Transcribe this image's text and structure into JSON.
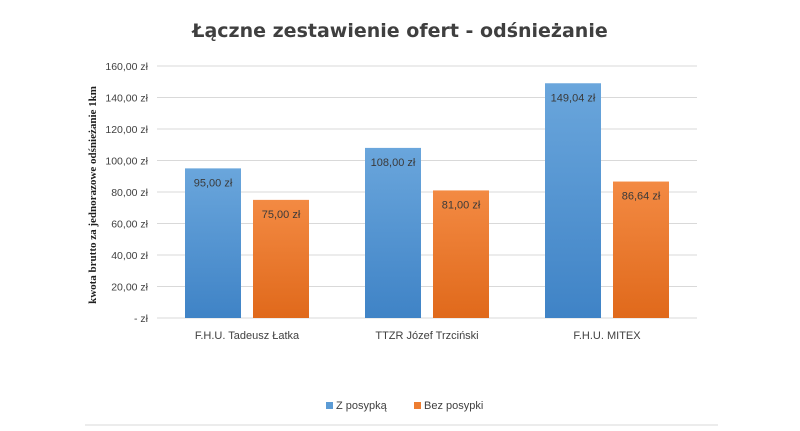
{
  "chart_data": {
    "type": "bar",
    "title": "Łączne zestawienie ofert - odśnieżanie",
    "ylabel": "kwota brutto za jednorazowe odśnieżanie 1km",
    "xlabel": "",
    "ylim": [
      0,
      160
    ],
    "yticks": [
      0,
      20,
      40,
      60,
      80,
      100,
      120,
      140,
      160
    ],
    "ytick_labels": [
      "-   zł",
      "20,00 zł",
      "40,00 zł",
      "60,00 zł",
      "80,00 zł",
      "100,00 zł",
      "120,00 zł",
      "140,00 zł",
      "160,00 zł"
    ],
    "categories": [
      "F.H.U. Tadeusz Łatka",
      "TTZR Józef Trzciński",
      "F.H.U. MITEX"
    ],
    "series": [
      {
        "name": "Z posypką",
        "color": "#5b9bd5",
        "values": [
          95.0,
          108.0,
          149.04
        ],
        "labels": [
          "95,00 zł",
          "108,00 zł",
          "149,04 zł"
        ]
      },
      {
        "name": "Bez posypki",
        "color": "#ed7d31",
        "values": [
          75.0,
          81.0,
          86.64
        ],
        "labels": [
          "75,00 zł",
          "81,00 zł",
          "86,64 zł"
        ]
      }
    ],
    "grid": true,
    "legend": "bottom"
  }
}
